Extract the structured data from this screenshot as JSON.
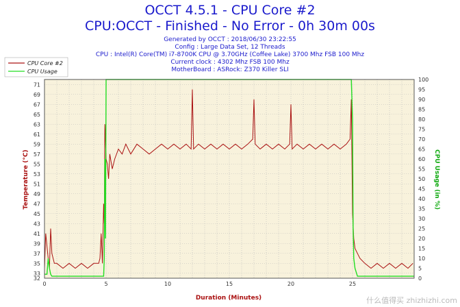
{
  "chart_data": {
    "type": "line",
    "title": "OCCT 4.5.1 - CPU Core #2",
    "subtitle": "CPU:OCCT - Finished - No Error - 0h 30m 00s",
    "info_lines": [
      "Generated by OCCT : 2018/06/30 23:22:55",
      "Config : Large Data Set, 12 Threads",
      "CPU : Intel(R) Core(TM) i7-8700K CPU @ 3.70GHz (Coffee Lake) 3700 Mhz FSB 100 Mhz",
      "Current clock : 4302 Mhz FSB 100 Mhz",
      "MotherBoard : ASRock: Z370 Killer SLI"
    ],
    "xlabel": "Duration (Minutes)",
    "ylabel_left": "Temperature (°C)",
    "ylabel_right": "CPU Usage (in %)",
    "xlim": [
      0,
      30
    ],
    "ylim_left": [
      32,
      72
    ],
    "ylim_right": [
      0,
      100
    ],
    "x_ticks": [
      0,
      5,
      10,
      15,
      20,
      25
    ],
    "y_ticks_left": [
      32,
      33,
      35,
      37,
      39,
      41,
      43,
      45,
      47,
      49,
      51,
      53,
      55,
      57,
      59,
      61,
      63,
      65,
      67,
      69,
      71
    ],
    "y_ticks_right": [
      0,
      5,
      10,
      15,
      20,
      25,
      30,
      35,
      40,
      45,
      50,
      55,
      60,
      65,
      70,
      75,
      80,
      85,
      90,
      95,
      100
    ],
    "grid": true,
    "legend_position": "top-left",
    "series": [
      {
        "name": "CPU Core #2",
        "color": "#aa1111",
        "axis": "left",
        "x": [
          0,
          0.1,
          0.3,
          0.4,
          0.5,
          0.6,
          0.8,
          1,
          1.5,
          2,
          2.5,
          3,
          3.5,
          4,
          4.4,
          4.5,
          4.6,
          4.7,
          4.8,
          4.85,
          4.9,
          5.0,
          5.1,
          5.2,
          5.3,
          5.5,
          5.7,
          6,
          6.3,
          6.6,
          7,
          7.5,
          8,
          8.5,
          9,
          9.5,
          10,
          10.5,
          11,
          11.5,
          11.9,
          12,
          12.1,
          12.5,
          13,
          13.5,
          14,
          14.5,
          15,
          15.5,
          16,
          16.5,
          16.9,
          17,
          17.1,
          17.5,
          18,
          18.5,
          19,
          19.5,
          19.9,
          20,
          20.1,
          20.5,
          21,
          21.5,
          22,
          22.5,
          23,
          23.5,
          24,
          24.5,
          24.8,
          24.9,
          25.0,
          25.1,
          25.2,
          25.4,
          25.6,
          26,
          26.5,
          27,
          27.5,
          28,
          28.5,
          29,
          29.5,
          29.9
        ],
        "y": [
          34,
          41,
          36,
          34,
          42,
          37,
          35,
          35,
          34,
          35,
          34,
          35,
          34,
          35,
          35,
          36,
          41,
          35,
          47,
          43,
          63,
          56,
          55,
          52,
          57,
          54,
          56,
          58,
          57,
          59,
          57,
          59,
          58,
          57,
          58,
          59,
          58,
          59,
          58,
          59,
          58,
          70,
          58,
          59,
          58,
          59,
          58,
          59,
          58,
          59,
          58,
          59,
          60,
          68,
          59,
          58,
          59,
          58,
          59,
          58,
          59,
          67,
          58,
          59,
          58,
          59,
          58,
          59,
          58,
          59,
          58,
          59,
          60,
          68,
          45,
          40,
          38,
          37,
          36,
          35,
          34,
          35,
          34,
          35,
          34,
          35,
          34,
          35
        ]
      },
      {
        "name": "CPU Usage",
        "color": "#22dd22",
        "axis": "right",
        "x": [
          0,
          0.2,
          0.3,
          0.4,
          0.5,
          0.6,
          4.8,
          4.85,
          4.9,
          4.95,
          5.0,
          5.05,
          24.9,
          25.0,
          25.05,
          25.1,
          25.2,
          25.4,
          30
        ],
        "y": [
          2,
          2,
          10,
          5,
          2,
          1,
          1,
          10,
          60,
          20,
          100,
          100,
          100,
          80,
          25,
          10,
          5,
          1,
          1
        ]
      }
    ]
  },
  "watermark": "什么值得买 zhizhizhi.com"
}
